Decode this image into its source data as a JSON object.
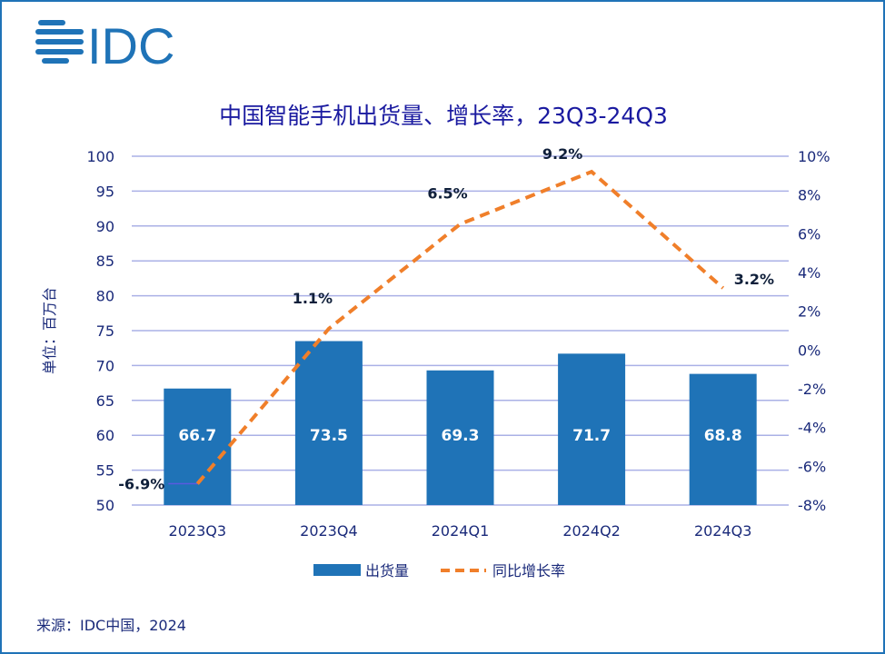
{
  "logo": {
    "text": "IDC",
    "color": "#1f73b7"
  },
  "source": "来源：IDC中国，2024",
  "chart_data": {
    "type": "bar+line",
    "title": "中国智能手机出货量、增长率，23Q3-24Q3",
    "ylabel": "单位：百万台",
    "categories": [
      "2023Q3",
      "2023Q4",
      "2024Q1",
      "2024Q2",
      "2024Q3"
    ],
    "series": [
      {
        "name": "出货量",
        "type": "bar",
        "axis": "left",
        "color": "#1f73b7",
        "values": [
          66.7,
          73.5,
          69.3,
          71.7,
          68.8
        ],
        "labels": [
          "66.7",
          "73.5",
          "69.3",
          "71.7",
          "68.8"
        ]
      },
      {
        "name": "同比增长率",
        "type": "line",
        "style": "dashed",
        "axis": "right",
        "color": "#f07f2a",
        "values": [
          -6.9,
          1.1,
          6.5,
          9.2,
          3.2
        ],
        "labels": [
          "-6.9%",
          "1.1%",
          "6.5%",
          "9.2%",
          "3.2%"
        ]
      }
    ],
    "yleft": {
      "range": [
        50,
        100
      ],
      "ticks": [
        "50",
        "55",
        "60",
        "65",
        "70",
        "75",
        "80",
        "85",
        "90",
        "95",
        "100"
      ]
    },
    "yright": {
      "range": [
        -8,
        10
      ],
      "ticks": [
        "-8%",
        "-6%",
        "-4%",
        "-2%",
        "0%",
        "2%",
        "4%",
        "6%",
        "8%",
        "10%"
      ]
    },
    "grid": true,
    "legend": "bottom"
  }
}
